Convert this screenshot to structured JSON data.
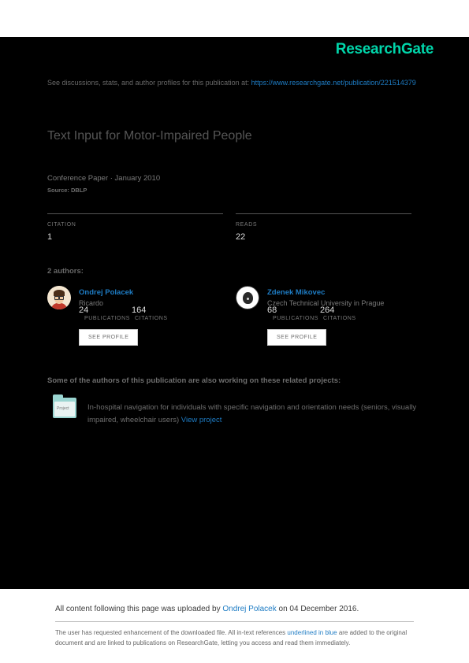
{
  "brand": "ResearchGate",
  "intro": {
    "prefix": "See discussions, stats, and author profiles for this publication at: ",
    "url": "https://www.researchgate.net/publication/221514379"
  },
  "title": "Text Input for Motor-Impaired People",
  "meta": "Conference Paper · January 2010",
  "source": "Source: DBLP",
  "stats": {
    "left_label": "CITATION",
    "left_val": "1",
    "right_label": "READS",
    "right_val": "22"
  },
  "authors_header": "2 authors:",
  "authors": [
    {
      "name": "Ondrej Polacek",
      "affiliation": "Ricardo",
      "pubs_label": "PUBLICATIONS",
      "pubs": "24",
      "cits_label": "CITATIONS",
      "cits": "164",
      "btn": "SEE PROFILE"
    },
    {
      "name": "Zdenek Mikovec",
      "affiliation": "Czech Technical University in Prague",
      "pubs_label": "PUBLICATIONS",
      "pubs": "68",
      "cits_label": "CITATIONS",
      "cits": "264",
      "btn": "SEE PROFILE"
    }
  ],
  "related_header": "Some of the authors of this publication are also working on these related projects:",
  "project": {
    "text": "In-hospital navigation for individuals with specific navigation and orientation needs (seniors, visually impaired, wheelchair users) ",
    "link": "View project"
  },
  "footer": {
    "upload_prefix": "All content following this page was uploaded by ",
    "upload_name": "Ondrej Polacek",
    "upload_suffix": " on 04 December 2016.",
    "disclaimer_a": "The user has requested enhancement of the downloaded file. All in-text references ",
    "disclaimer_link": "underlined in blue",
    "disclaimer_b": " are added to the original document and are linked to publications on ResearchGate, letting you access and read them immediately."
  }
}
